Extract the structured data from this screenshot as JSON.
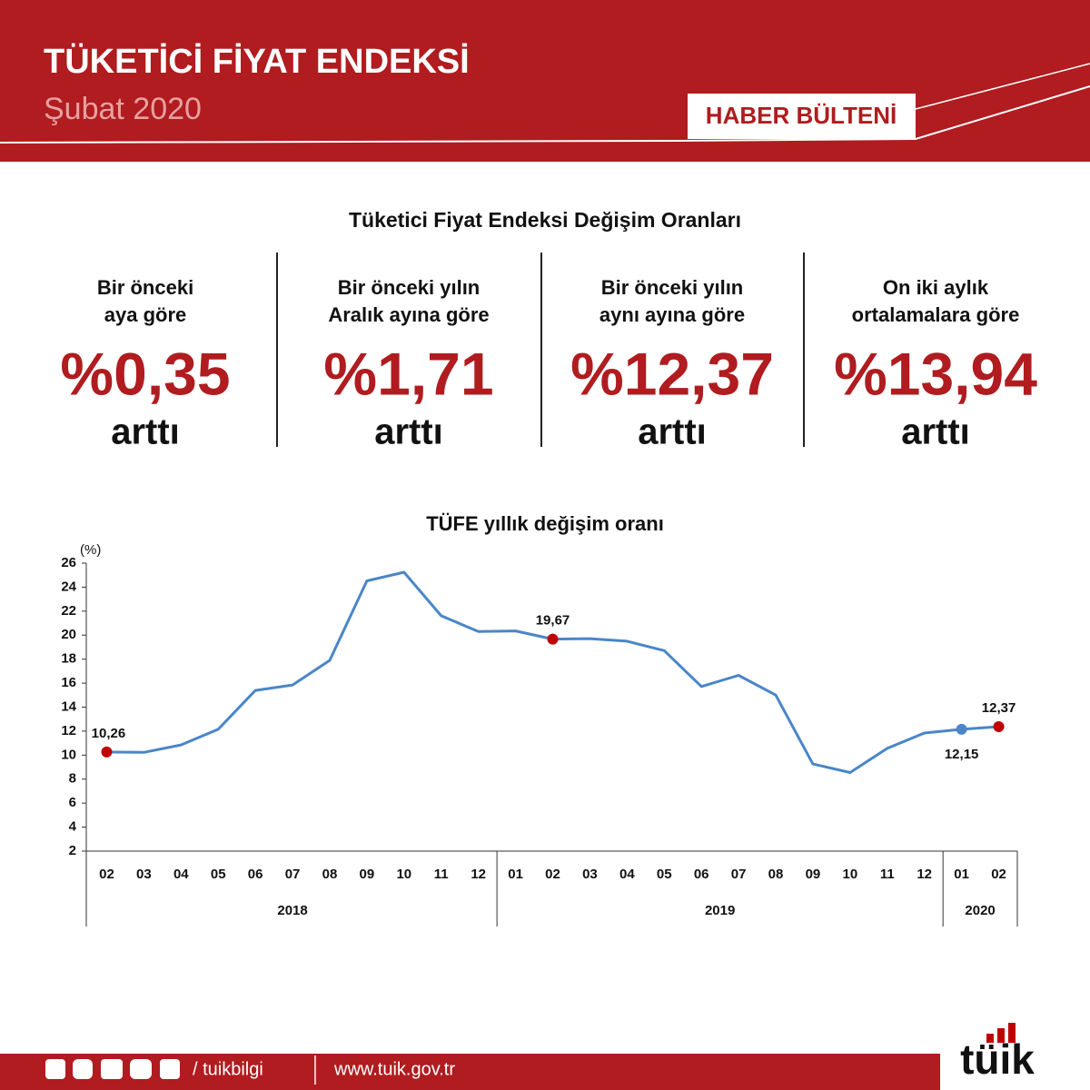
{
  "header": {
    "title": "TÜKETİCİ FİYAT ENDEKSİ",
    "subtitle": "Şubat 2020",
    "badge": "HABER BÜLTENİ"
  },
  "summary": {
    "title": "Tüketici Fiyat Endeksi Değişim Oranları",
    "items": [
      {
        "label": [
          "Bir önceki",
          "aya göre"
        ],
        "value": "%0,35",
        "note": "arttı"
      },
      {
        "label": [
          "Bir önceki yılın",
          "Aralık ayına göre"
        ],
        "value": "%1,71",
        "note": "arttı"
      },
      {
        "label": [
          "Bir önceki yılın",
          "aynı ayına göre"
        ],
        "value": "%12,37",
        "note": "arttı"
      },
      {
        "label": [
          "On iki aylık",
          "ortalamalara göre"
        ],
        "value": "%13,94",
        "note": "arttı"
      }
    ]
  },
  "chart_data": {
    "type": "line",
    "title": "TÜFE yıllık değişim oranı",
    "ylabel": "(%)",
    "categories": [
      "02",
      "03",
      "04",
      "05",
      "06",
      "07",
      "08",
      "09",
      "10",
      "11",
      "12",
      "01",
      "02",
      "03",
      "04",
      "05",
      "06",
      "07",
      "08",
      "09",
      "10",
      "11",
      "12",
      "01",
      "02"
    ],
    "x_groups": [
      "2018",
      "2019",
      "2020"
    ],
    "values": [
      10.26,
      10.23,
      10.85,
      12.15,
      15.39,
      15.85,
      17.9,
      24.52,
      25.24,
      21.62,
      20.3,
      20.35,
      19.67,
      19.71,
      19.5,
      18.71,
      15.72,
      16.65,
      15.01,
      9.26,
      8.55,
      10.56,
      11.84,
      12.15,
      12.37
    ],
    "value_labels": [
      "10,26",
      null,
      null,
      null,
      null,
      null,
      null,
      null,
      null,
      null,
      null,
      null,
      "19,67",
      null,
      null,
      null,
      null,
      null,
      null,
      null,
      null,
      null,
      null,
      "12,15",
      "12,37"
    ],
    "marker_colors": [
      "#c00000",
      null,
      null,
      null,
      null,
      null,
      null,
      null,
      null,
      null,
      null,
      null,
      "#c00000",
      null,
      null,
      null,
      null,
      null,
      null,
      null,
      null,
      null,
      null,
      "#4a86c8",
      "#c00000"
    ],
    "color": "#4a86c8",
    "ylim": [
      2,
      26
    ],
    "yticks": [
      2,
      4,
      6,
      8,
      10,
      12,
      14,
      16,
      18,
      20,
      22,
      24,
      26
    ]
  },
  "footer": {
    "handle": "/ tuikbilgi",
    "url": "www.tuik.gov.tr",
    "logo": "tüik"
  }
}
